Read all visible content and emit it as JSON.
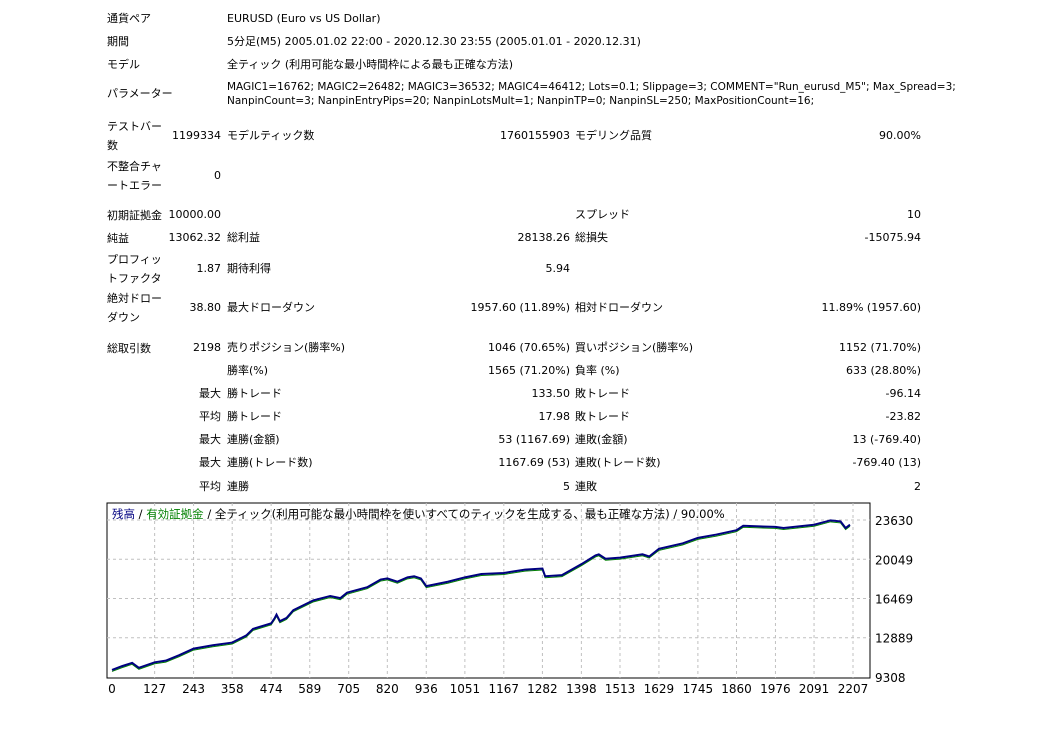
{
  "header": {
    "pair_label": "通貨ペア",
    "pair": "EURUSD (Euro vs US Dollar)",
    "period_label": "期間",
    "period": "5分足(M5) 2005.01.02 22:00 - 2020.12.30 23:55 (2005.01.01 - 2020.12.31)",
    "model_label": "モデル",
    "model": "全ティック (利用可能な最小時間枠による最も正確な方法)",
    "params_label": "パラメーター",
    "params_line1": "MAGIC1=16762; MAGIC2=26482; MAGIC3=36532; MAGIC4=46412; Lots=0.1; Slippage=3; COMMENT=\"Run_eurusd_M5\"; Max_Spread=3;",
    "params_line2": "NanpinCount=3; NanpinEntryPips=20; NanpinLotsMult=1; NanpinTP=0; NanpinSL=250; MaxPositionCount=16;"
  },
  "stats": [
    [
      "テストバー数",
      "1199334",
      "モデルティック数",
      "1760155903",
      "モデリング品質",
      "90.00%"
    ],
    [
      "不整合チャートエラー",
      "0",
      "",
      "",
      "",
      ""
    ],
    [
      "初期証拠金",
      "10000.00",
      "",
      "",
      "スプレッド",
      "10"
    ],
    [
      "純益",
      "13062.32",
      "総利益",
      "28138.26",
      "総損失",
      "-15075.94"
    ],
    [
      "プロフィットファクタ",
      "1.87",
      "期待利得",
      "5.94",
      "",
      ""
    ],
    [
      "絶対ドローダウン",
      "38.80",
      "最大ドローダウン",
      "1957.60 (11.89%)",
      "相対ドローダウン",
      "11.89% (1957.60)"
    ],
    [
      "総取引数",
      "2198",
      "売りポジション(勝率%)",
      "1046 (70.65%)",
      "買いポジション(勝率%)",
      "1152 (71.70%)"
    ],
    [
      "",
      "",
      "勝率(%)",
      "1565 (71.20%)",
      "負率 (%)",
      "633 (28.80%)"
    ],
    [
      "",
      "最大",
      "勝トレード",
      "133.50",
      "敗トレード",
      "-96.14"
    ],
    [
      "",
      "平均",
      "勝トレード",
      "17.98",
      "敗トレード",
      "-23.82"
    ],
    [
      "",
      "最大",
      "連勝(金額)",
      "53 (1167.69)",
      "連敗(金額)",
      "13 (-769.40)"
    ],
    [
      "",
      "最大",
      "連勝(トレード数)",
      "1167.69 (53)",
      "連敗(トレード数)",
      "-769.40 (13)"
    ],
    [
      "",
      "平均",
      "連勝",
      "5",
      "連敗",
      "2"
    ]
  ],
  "chart_data": {
    "type": "line",
    "legend": {
      "balance": "残高",
      "sep": " / ",
      "equity": "有効証拠金",
      "rest": " / 全ティック(利用可能な最小時間枠を使いすべてのティックを生成する、最も正確な方法) / 90.00%"
    },
    "colors": {
      "balance": "#000080",
      "equity": "#008000",
      "grid": "#c0c0c0"
    },
    "xlabel": "",
    "ylabel": "",
    "x_ticks": [
      0,
      127,
      243,
      358,
      474,
      589,
      705,
      820,
      936,
      1051,
      1167,
      1282,
      1398,
      1513,
      1629,
      1745,
      1860,
      1976,
      2091,
      2207
    ],
    "y_ticks": [
      9308,
      12889,
      16469,
      20049,
      23630
    ],
    "ylim": [
      9308,
      23630
    ],
    "xlim": [
      0,
      2207
    ],
    "series": [
      {
        "name": "残高",
        "x": [
          0,
          30,
          60,
          80,
          127,
          160,
          200,
          243,
          300,
          358,
          400,
          420,
          474,
          485,
          490,
          500,
          520,
          540,
          600,
          650,
          680,
          700,
          760,
          800,
          820,
          850,
          880,
          900,
          920,
          936,
          1000,
          1051,
          1100,
          1167,
          1230,
          1282,
          1290,
          1340,
          1398,
          1440,
          1450,
          1470,
          1513,
          1580,
          1600,
          1629,
          1700,
          1745,
          1800,
          1860,
          1880,
          1976,
          2000,
          2091,
          2140,
          2170,
          2185,
          2198
        ],
        "y": [
          9950,
          10300,
          10600,
          10150,
          10650,
          10800,
          11300,
          11900,
          12200,
          12450,
          13100,
          13700,
          14200,
          14700,
          15000,
          14400,
          14700,
          15400,
          16300,
          16700,
          16500,
          17000,
          17500,
          18200,
          18300,
          18000,
          18400,
          18500,
          18300,
          17600,
          18000,
          18400,
          18700,
          18800,
          19100,
          19200,
          18500,
          18600,
          19600,
          20400,
          20500,
          20100,
          20200,
          20500,
          20300,
          21000,
          21500,
          22000,
          22300,
          22700,
          23100,
          23000,
          22900,
          23200,
          23600,
          23500,
          22900,
          23200
        ]
      }
    ]
  }
}
